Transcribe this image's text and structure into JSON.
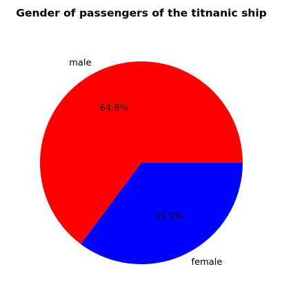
{
  "chart_data": {
    "type": "pie",
    "title": "Gender of passengers of the titnanic ship",
    "categories": [
      "male",
      "female"
    ],
    "values": [
      64.8,
      35.2
    ],
    "value_labels": [
      "64.8%",
      "35.2%"
    ],
    "colors": [
      "#ff0000",
      "#0000ff"
    ],
    "start_angle_deg": 0,
    "direction": "counterclockwise"
  }
}
